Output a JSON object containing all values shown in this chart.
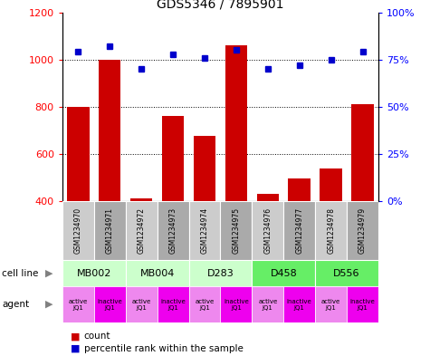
{
  "title": "GDS5346 / 7895901",
  "samples": [
    "GSM1234970",
    "GSM1234971",
    "GSM1234972",
    "GSM1234973",
    "GSM1234974",
    "GSM1234975",
    "GSM1234976",
    "GSM1234977",
    "GSM1234978",
    "GSM1234979"
  ],
  "counts": [
    800,
    1000,
    410,
    760,
    675,
    1060,
    430,
    495,
    540,
    810
  ],
  "percentiles": [
    79,
    82,
    70,
    78,
    76,
    80,
    70,
    72,
    75,
    79
  ],
  "cell_lines": [
    {
      "label": "MB002",
      "span": [
        0,
        2
      ],
      "color": "#ccffcc"
    },
    {
      "label": "MB004",
      "span": [
        2,
        4
      ],
      "color": "#ccffcc"
    },
    {
      "label": "D283",
      "span": [
        4,
        6
      ],
      "color": "#ccffcc"
    },
    {
      "label": "D458",
      "span": [
        6,
        8
      ],
      "color": "#66ee66"
    },
    {
      "label": "D556",
      "span": [
        8,
        10
      ],
      "color": "#66ee66"
    }
  ],
  "agents": [
    "active\nJQ1",
    "inactive\nJQ1",
    "active\nJQ1",
    "inactive\nJQ1",
    "active\nJQ1",
    "inactive\nJQ1",
    "active\nJQ1",
    "inactive\nJQ1",
    "active\nJQ1",
    "inactive\nJQ1"
  ],
  "agent_active_color": "#ee88ee",
  "agent_inactive_color": "#ee00ee",
  "ylim_left": [
    400,
    1200
  ],
  "ylim_right": [
    0,
    100
  ],
  "yticks_left": [
    400,
    600,
    800,
    1000,
    1200
  ],
  "yticks_right": [
    0,
    25,
    50,
    75,
    100
  ],
  "ytick_labels_right": [
    "0%",
    "25%",
    "50%",
    "75%",
    "100%"
  ],
  "bar_color": "#cc0000",
  "dot_color": "#0000cc",
  "bar_width": 0.7,
  "grid_color": "#000000",
  "sample_box_color_even": "#cccccc",
  "sample_box_color_odd": "#aaaaaa",
  "figsize": [
    4.75,
    3.93
  ],
  "dpi": 100
}
